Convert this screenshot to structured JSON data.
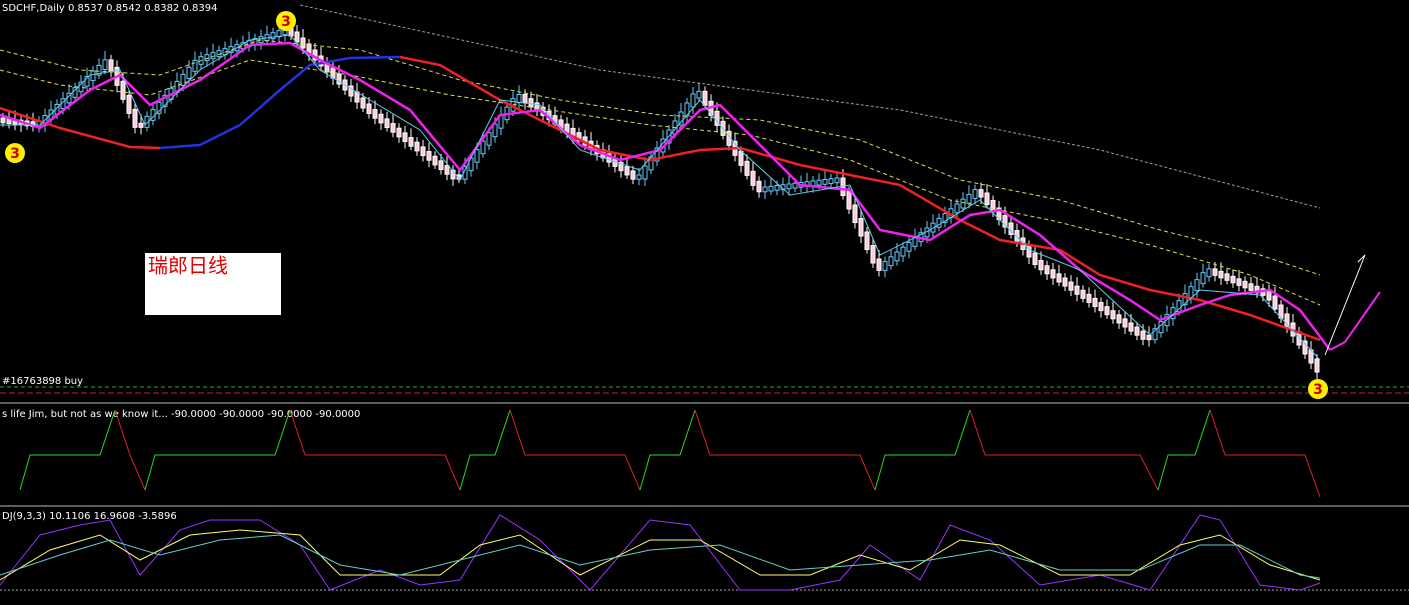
{
  "header": {
    "symbol": "SDCHF,Daily  0.8537 0.8542 0.8382 0.8394"
  },
  "label": "瑞郎日线",
  "order": "#16763898 buy",
  "indicator1": "s life Jim, but not as we know it...  -90.0000 -90.0000 -90.0000 -90.0000",
  "indicator2": "DJ(9,3,3) 10.1106 16.9608 -3.5896",
  "markers": [
    "3",
    "3",
    "3"
  ]
}
